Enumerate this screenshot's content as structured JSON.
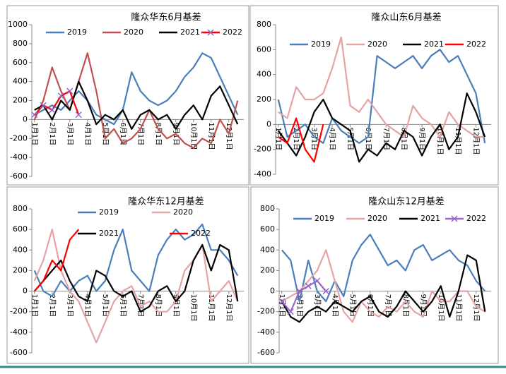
{
  "chart_data": [
    {
      "type": "line",
      "title": "隆众华东6月基差",
      "categories": [
        "1月1日",
        null,
        "2月1日",
        null,
        "3月1日",
        null,
        "4月1日",
        null,
        "5月1日",
        null,
        "6月1日",
        null,
        "7月1日",
        null,
        "8月1日",
        null,
        "9月1日",
        null,
        "10月1日",
        null,
        "11月1日",
        null,
        "12月1日",
        null
      ],
      "ylim": [
        -600,
        1000
      ],
      "yticks": [
        -600,
        -400,
        -200,
        0,
        200,
        400,
        600,
        800,
        1000
      ],
      "series": [
        {
          "name": "2019",
          "color": "#4a7ebb",
          "values": [
            50,
            100,
            150,
            100,
            200,
            300,
            200,
            50,
            0,
            -50,
            100,
            500,
            300,
            200,
            150,
            200,
            300,
            450,
            550,
            700,
            650,
            450,
            250,
            50
          ]
        },
        {
          "name": "2020",
          "color": "#c0504d",
          "values": [
            0,
            200,
            550,
            300,
            100,
            400,
            700,
            300,
            -200,
            -100,
            -250,
            -200,
            -100,
            100,
            -100,
            -200,
            -150,
            -250,
            -300,
            -200,
            -250,
            0,
            -150,
            200
          ]
        },
        {
          "name": "2021",
          "color": "#000000",
          "values": [
            100,
            150,
            0,
            200,
            100,
            400,
            200,
            -50,
            50,
            0,
            100,
            -100,
            50,
            100,
            0,
            50,
            -100,
            50,
            150,
            0,
            250,
            350,
            150,
            -50
          ]
        },
        {
          "name": "2022",
          "color": "#ff0000",
          "marker": "x",
          "marker_color": "#9966cc",
          "values": [
            50,
            150,
            100,
            250,
            300,
            50,
            null,
            null,
            null,
            null,
            null,
            null,
            null,
            null,
            null,
            null,
            null,
            null,
            null,
            null,
            null,
            null,
            null,
            null
          ]
        }
      ]
    },
    {
      "type": "line",
      "title": "隆众山东6月基差",
      "categories": [
        "1月1日",
        null,
        "2月1日",
        null,
        "3月1日",
        null,
        "4月1日",
        null,
        "5月1日",
        null,
        "6月1日",
        null,
        "7月1日",
        null,
        "8月1日",
        null,
        "9月1日",
        null,
        "10月1日",
        null,
        "11月1日",
        null,
        "12月1日",
        null
      ],
      "ylim": [
        -400,
        800
      ],
      "yticks": [
        -400,
        -200,
        0,
        200,
        400,
        600,
        800
      ],
      "series": [
        {
          "name": "2019",
          "color": "#4a7ebb",
          "values": [
            200,
            -100,
            -50,
            0,
            -100,
            -150,
            50,
            -50,
            -100,
            -150,
            -100,
            550,
            500,
            450,
            500,
            550,
            450,
            550,
            600,
            500,
            550,
            400,
            250,
            -150
          ]
        },
        {
          "name": "2020",
          "color": "#e6a3a3",
          "values": [
            100,
            50,
            300,
            200,
            200,
            250,
            450,
            700,
            150,
            100,
            200,
            100,
            0,
            -50,
            -100,
            150,
            50,
            0,
            -100,
            100,
            0,
            -50,
            -100,
            -100
          ]
        },
        {
          "name": "2021",
          "color": "#000000",
          "values": [
            -50,
            -150,
            -250,
            -100,
            100,
            200,
            50,
            0,
            -50,
            -300,
            -200,
            -250,
            -150,
            -200,
            -50,
            -100,
            -250,
            -100,
            0,
            -200,
            -100,
            250,
            100,
            -100
          ]
        },
        {
          "name": "2022",
          "color": "#ff0000",
          "values": [
            -100,
            -150,
            50,
            -200,
            -300,
            0,
            null,
            null,
            null,
            null,
            null,
            null,
            null,
            null,
            null,
            null,
            null,
            null,
            null,
            null,
            null,
            null,
            null,
            null
          ]
        }
      ]
    },
    {
      "type": "line",
      "title": "隆众华东12月基差",
      "categories": [
        "1月1日",
        null,
        "2月1日",
        null,
        "3月1日",
        null,
        "4月1日",
        null,
        "5月1日",
        null,
        "6月1日",
        null,
        "7月1日",
        null,
        "8月1日",
        null,
        "9月1日",
        null,
        "10月1日",
        null,
        "11月1日",
        null,
        "12月1日",
        null
      ],
      "ylim": [
        -600,
        800
      ],
      "yticks": [
        -600,
        -400,
        -200,
        0,
        200,
        400,
        600,
        800
      ],
      "series": [
        {
          "name": "2019",
          "color": "#4a7ebb",
          "values": [
            200,
            0,
            -50,
            100,
            0,
            100,
            150,
            0,
            100,
            400,
            600,
            200,
            100,
            0,
            350,
            500,
            600,
            500,
            550,
            650,
            400,
            400,
            300,
            150
          ]
        },
        {
          "name": "2020",
          "color": "#e6a3a3",
          "values": [
            100,
            300,
            600,
            200,
            0,
            -100,
            -300,
            -500,
            -300,
            -100,
            0,
            50,
            -150,
            -100,
            -200,
            -200,
            -100,
            200,
            300,
            450,
            -100,
            0,
            100,
            -100
          ]
        },
        {
          "name": "2021",
          "color": "#000000",
          "values": [
            0,
            100,
            200,
            300,
            100,
            -50,
            -100,
            200,
            150,
            0,
            -50,
            0,
            -200,
            -150,
            0,
            50,
            -100,
            0,
            300,
            450,
            200,
            450,
            400,
            -100
          ]
        },
        {
          "name": "2022",
          "color": "#ff0000",
          "values": [
            0,
            100,
            300,
            200,
            500,
            600,
            null,
            null,
            null,
            null,
            null,
            null,
            null,
            null,
            null,
            null,
            null,
            null,
            null,
            null,
            null,
            null,
            null,
            null
          ]
        }
      ]
    },
    {
      "type": "line",
      "title": "隆众山东12月基差",
      "categories": [
        "1月1日",
        null,
        "2月1日",
        null,
        "3月1日",
        null,
        "4月1日",
        null,
        "5月1日",
        null,
        "6月1日",
        null,
        "7月1日",
        null,
        "8月1日",
        null,
        "9月1日",
        null,
        "10月1日",
        null,
        "11月1日",
        null,
        "12月1日",
        null
      ],
      "ylim": [
        -600,
        800
      ],
      "yticks": [
        -600,
        -400,
        -200,
        0,
        200,
        400,
        600,
        800
      ],
      "series": [
        {
          "name": "2019",
          "color": "#4a7ebb",
          "values": [
            400,
            300,
            -100,
            300,
            0,
            -100,
            100,
            -50,
            300,
            450,
            550,
            400,
            250,
            300,
            200,
            400,
            450,
            300,
            350,
            400,
            300,
            250,
            100,
            0
          ]
        },
        {
          "name": "2020",
          "color": "#e6a3a3",
          "values": [
            -100,
            -50,
            0,
            100,
            200,
            400,
            100,
            -200,
            -300,
            -100,
            -200,
            -250,
            -150,
            -200,
            -100,
            -200,
            -250,
            0,
            -100,
            -100,
            0,
            0,
            -150,
            -200
          ]
        },
        {
          "name": "2021",
          "color": "#000000",
          "values": [
            -100,
            -250,
            -300,
            -200,
            -150,
            -200,
            -100,
            -150,
            -200,
            -100,
            -50,
            -200,
            -250,
            -150,
            0,
            -100,
            -200,
            -100,
            50,
            -250,
            0,
            350,
            300,
            -200
          ]
        },
        {
          "name": "2022",
          "color": "#9966cc",
          "marker": "x",
          "marker_color": "#9966cc",
          "values": [
            -100,
            -200,
            0,
            50,
            100,
            0,
            null,
            null,
            null,
            null,
            null,
            null,
            null,
            null,
            null,
            null,
            null,
            null,
            null,
            null,
            null,
            null,
            null,
            null
          ]
        }
      ]
    }
  ]
}
